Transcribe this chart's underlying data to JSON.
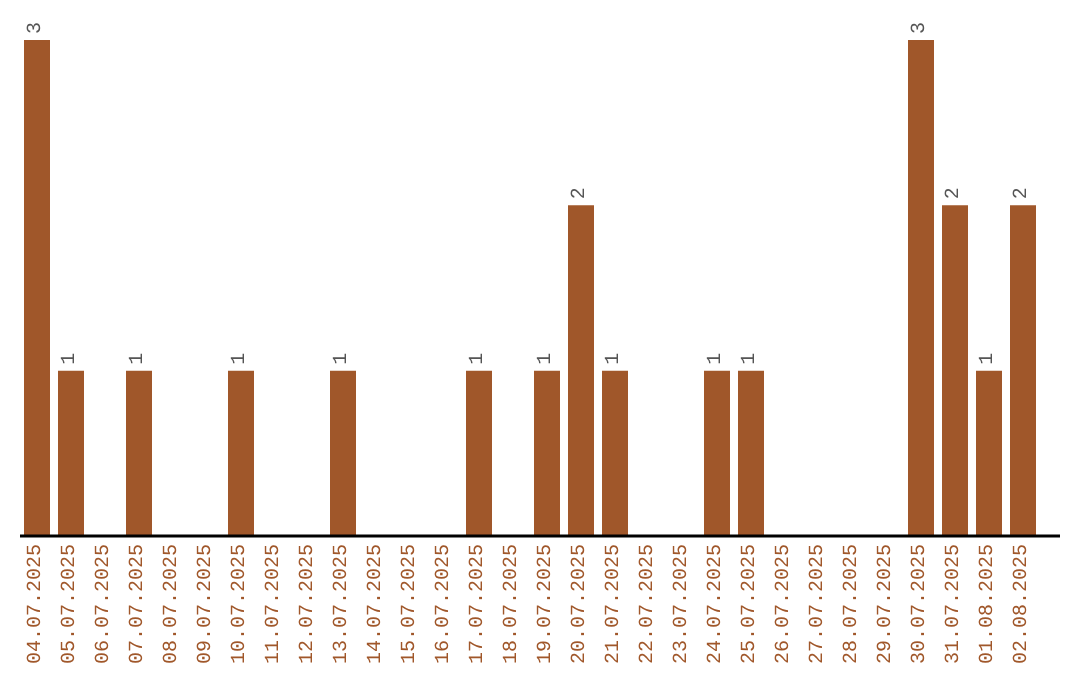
{
  "chart_data": {
    "type": "bar",
    "categories": [
      "04.07.2025",
      "05.07.2025",
      "06.07.2025",
      "07.07.2025",
      "08.07.2025",
      "09.07.2025",
      "10.07.2025",
      "11.07.2025",
      "12.07.2025",
      "13.07.2025",
      "14.07.2025",
      "15.07.2025",
      "16.07.2025",
      "17.07.2025",
      "18.07.2025",
      "19.07.2025",
      "20.07.2025",
      "21.07.2025",
      "22.07.2025",
      "23.07.2025",
      "24.07.2025",
      "25.07.2025",
      "26.07.2025",
      "27.07.2025",
      "28.07.2025",
      "29.07.2025",
      "30.07.2025",
      "31.07.2025",
      "01.08.2025",
      "02.08.2025"
    ],
    "values": [
      3,
      1,
      0,
      1,
      0,
      0,
      1,
      0,
      0,
      1,
      0,
      0,
      0,
      1,
      0,
      1,
      2,
      1,
      0,
      0,
      1,
      1,
      0,
      0,
      0,
      0,
      3,
      2,
      1,
      2
    ],
    "value_labels": [
      "3",
      "1",
      null,
      "1",
      null,
      null,
      "1",
      null,
      null,
      "1",
      null,
      null,
      null,
      "1",
      null,
      "1",
      "2",
      "1",
      null,
      null,
      "1",
      "1",
      null,
      null,
      null,
      null,
      "3",
      "2",
      "1",
      "2"
    ],
    "color": "#a0572a",
    "grid": false,
    "legend": false
  }
}
